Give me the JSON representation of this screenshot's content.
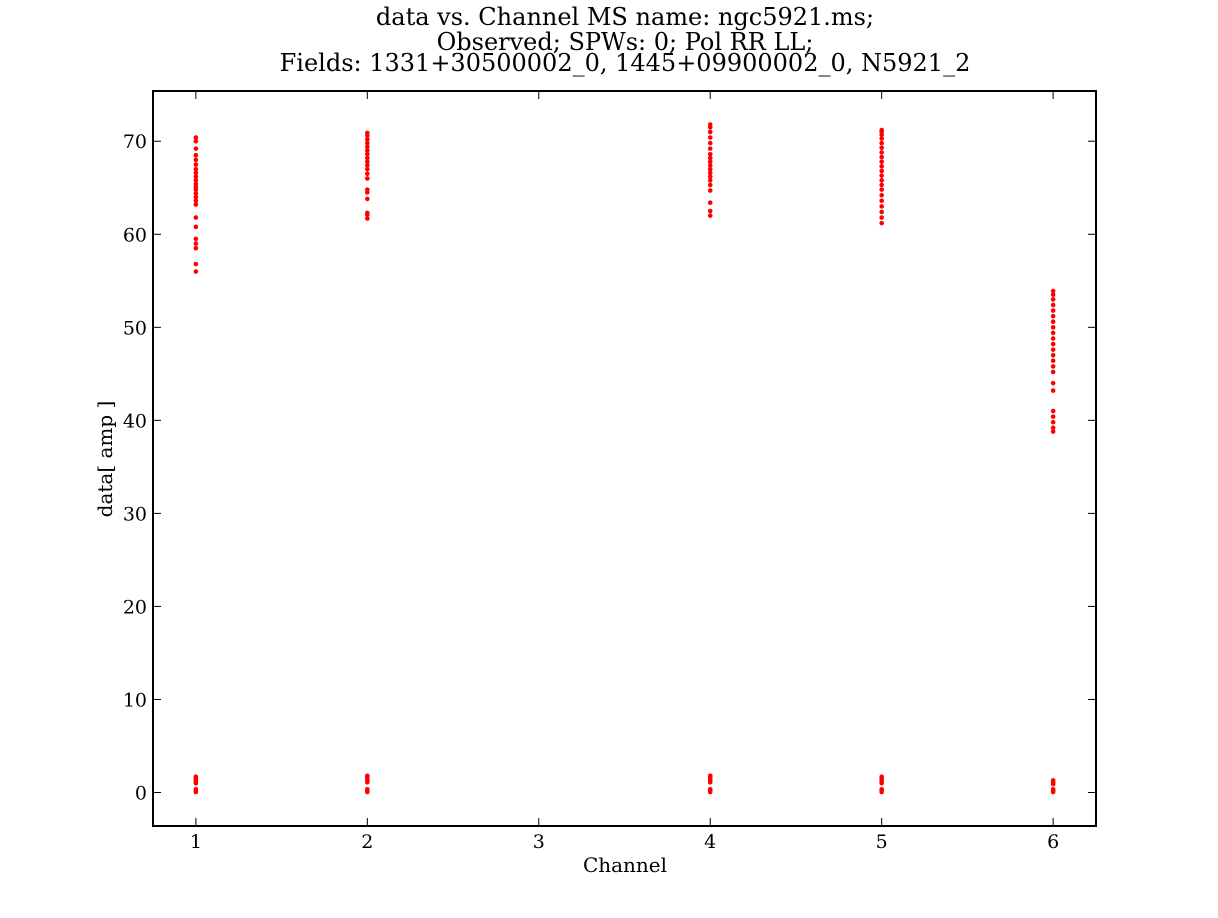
{
  "chart_data": {
    "type": "scatter",
    "title_lines": [
      "data vs. Channel  MS name: ngc5921.ms;",
      "Observed; SPWs:  0; Pol RR LL;",
      "Fields: 1331+30500002_0, 1445+09900002_0, N5921_2"
    ],
    "xlabel": "Channel",
    "ylabel": "data[ amp ]",
    "xlim": [
      0.75,
      6.25
    ],
    "ylim": [
      -3.6,
      75.4
    ],
    "xticks": [
      1,
      2,
      3,
      4,
      5,
      6
    ],
    "yticks": [
      0,
      10,
      20,
      30,
      40,
      50,
      60,
      70
    ],
    "grid": false,
    "point_color": "#ff0000",
    "series": [
      {
        "x": 1,
        "values": [
          56.0,
          56.8,
          58.5,
          59.0,
          59.5,
          60.8,
          61.8,
          63.2,
          63.6,
          64.0,
          64.4,
          64.8,
          65.1,
          65.4,
          65.8,
          66.2,
          66.6,
          67.0,
          67.5,
          68.0,
          68.5,
          69.2,
          70.0,
          70.4,
          0.05,
          0.2,
          0.35,
          1.0,
          1.2,
          1.4,
          1.6,
          1.7
        ]
      },
      {
        "x": 2,
        "values": [
          61.7,
          62.1,
          62.3,
          63.8,
          64.5,
          64.8,
          66.0,
          66.5,
          67.0,
          67.4,
          67.8,
          68.2,
          68.6,
          69.0,
          69.4,
          69.8,
          70.2,
          70.6,
          70.9,
          0.05,
          0.2,
          0.35,
          1.1,
          1.3,
          1.5,
          1.7,
          1.8
        ]
      },
      {
        "x": 4,
        "values": [
          62.0,
          62.5,
          63.4,
          64.7,
          65.3,
          65.8,
          66.2,
          66.6,
          67.0,
          67.4,
          67.8,
          68.2,
          68.6,
          69.2,
          69.8,
          70.4,
          71.0,
          71.5,
          71.8,
          0.05,
          0.2,
          0.35,
          1.1,
          1.3,
          1.5,
          1.7,
          1.8
        ]
      },
      {
        "x": 5,
        "values": [
          61.2,
          61.8,
          62.4,
          63.0,
          63.6,
          64.2,
          64.8,
          65.3,
          65.8,
          66.3,
          66.8,
          67.3,
          67.8,
          68.3,
          68.8,
          69.3,
          69.8,
          70.3,
          70.7,
          71.0,
          71.2,
          0.05,
          0.2,
          0.35,
          1.0,
          1.2,
          1.4,
          1.6,
          1.7
        ]
      },
      {
        "x": 6,
        "values": [
          38.8,
          39.2,
          39.8,
          40.4,
          41.0,
          43.2,
          44.0,
          45.2,
          45.8,
          46.4,
          47.0,
          47.6,
          48.2,
          48.8,
          49.4,
          50.0,
          50.6,
          51.2,
          51.8,
          52.4,
          53.0,
          53.5,
          53.9,
          0.05,
          0.2,
          0.35,
          0.9,
          1.1,
          1.3
        ]
      }
    ]
  }
}
